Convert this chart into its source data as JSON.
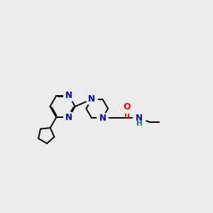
{
  "bg_color": "#ebebeb",
  "bond_color": "#000000",
  "N_color": "#0000cc",
  "O_color": "#ff0000",
  "H_color": "#008080",
  "line_width": 1.4,
  "figsize": [
    3.0,
    3.0
  ],
  "dpi": 100,
  "xlim": [
    0.2,
    10.2
  ],
  "ylim": [
    2.5,
    8.5
  ]
}
